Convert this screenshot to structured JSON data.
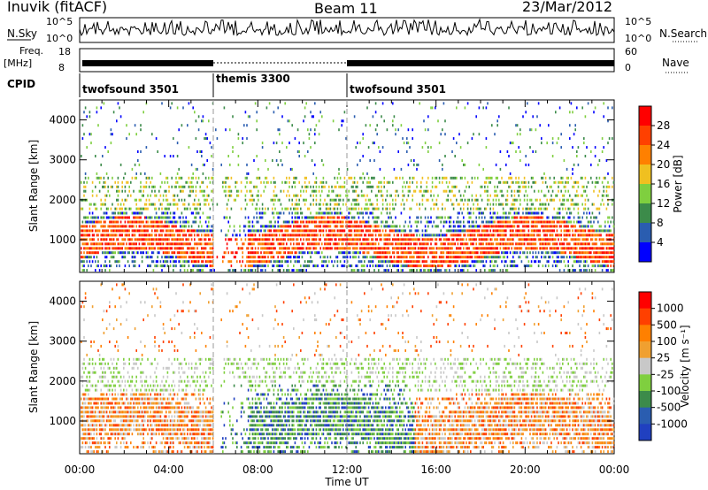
{
  "header": {
    "site": "Inuvik (fitACF)",
    "beam": "Beam 11",
    "date": "23/Mar/2012"
  },
  "panels": {
    "nsky_label": "N.Sky",
    "nsearch_label": "N.Search",
    "freq_label_1": "Freq.",
    "freq_label_2": "[MHz]",
    "nave_label": "Nave",
    "cpid_label": "CPID",
    "nsky_ticks": [
      "10^5",
      "10^0"
    ],
    "nsearch_ticks": [
      "10^5",
      "10^0"
    ],
    "freq_ticks": [
      "18",
      "8"
    ],
    "nave_ticks": [
      "60",
      "0"
    ]
  },
  "cpid": [
    {
      "name": "twofsound 3501",
      "start_h": 0,
      "end_h": 6
    },
    {
      "name": "themis 3300",
      "start_h": 6,
      "end_h": 12
    },
    {
      "name": "twofsound 3501",
      "start_h": 12,
      "end_h": 24
    }
  ],
  "x_axis": {
    "label": "Time UT",
    "ticks": [
      "00:00",
      "04:00",
      "08:00",
      "12:00",
      "16:00",
      "20:00",
      "00:00"
    ]
  },
  "colors": {
    "power": [
      "#0000ff",
      "#2a5db0",
      "#3c8b4a",
      "#7fcf3f",
      "#f0c020",
      "#ff8000",
      "#ff4000",
      "#ff0000"
    ],
    "velocity": [
      "#2040c0",
      "#2a5db0",
      "#3c8b4a",
      "#7fcf3f",
      "#c8c8c8",
      "#f0a030",
      "#ff8000",
      "#ff4000",
      "#ff0000"
    ]
  },
  "chart_data": [
    {
      "type": "heatmap",
      "title": "",
      "xlabel": "Time UT",
      "ylabel": "Slant Range [km]",
      "xlim": [
        0,
        24
      ],
      "ylim": [
        180,
        4500
      ],
      "yticks": [
        "1000",
        "2000",
        "3000",
        "4000"
      ],
      "colorbar": {
        "label": "Power [dB]",
        "ticks": [
          "4",
          "8",
          "12",
          "16",
          "20",
          "24",
          "28"
        ]
      }
    },
    {
      "type": "heatmap",
      "title": "",
      "xlabel": "Time UT",
      "ylabel": "Slant Range [km]",
      "xlim": [
        0,
        24
      ],
      "ylim": [
        180,
        4500
      ],
      "yticks": [
        "1000",
        "2000",
        "3000",
        "4000"
      ],
      "colorbar": {
        "label": "Velocity [m s⁻¹]",
        "ticks": [
          "1000",
          "500",
          "100",
          "25",
          "-25",
          "-100",
          "-500",
          "-1000"
        ]
      }
    }
  ]
}
